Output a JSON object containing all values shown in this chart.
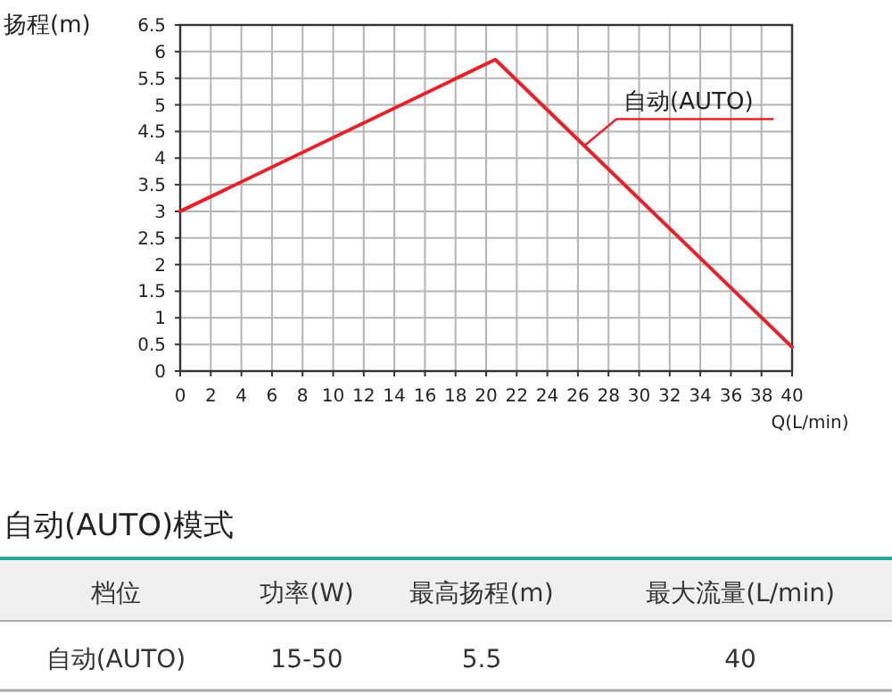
{
  "chart_data": [
    {
      "type": "line",
      "ylabel": "扬程(m)",
      "xlabel": "Q(L/min)",
      "x": [
        0,
        20.6,
        40
      ],
      "series": [
        {
          "name": "自动(AUTO)",
          "color": "#e8202a",
          "values": [
            3.0,
            5.85,
            0.45
          ]
        }
      ],
      "xlim": [
        0,
        40
      ],
      "xticks": [
        0,
        2,
        4,
        6,
        8,
        10,
        12,
        14,
        16,
        18,
        20,
        22,
        24,
        26,
        28,
        30,
        32,
        34,
        36,
        38,
        40
      ],
      "ylim": [
        0,
        6.5
      ],
      "yticks": [
        0,
        0.5,
        1,
        1.5,
        2,
        2.5,
        3,
        3.5,
        4,
        4.5,
        5,
        5.5,
        6,
        6.5
      ],
      "grid": true,
      "legend": false,
      "marker": "none",
      "line_style": "solid"
    },
    {
      "type": "other",
      "title": "自动(AUTO)模式",
      "annotations": [
        "档位",
        "功率(W)",
        "最高扬程(m)",
        "最大流量(L/min)",
        "自动(AUTO)",
        "15-50",
        "5.5",
        "40"
      ]
    }
  ]
}
